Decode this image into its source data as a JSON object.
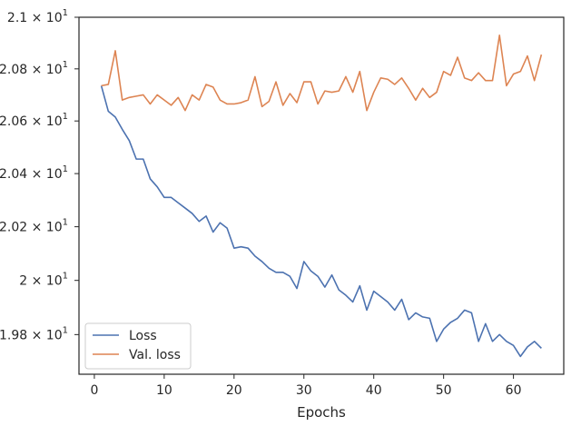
{
  "chart_data": {
    "type": "line",
    "xlabel": "Epochs",
    "ylabel": "",
    "xlim": [
      -2.2,
      67.2
    ],
    "ylim": [
      19.655,
      21.0
    ],
    "log_scale_y": true,
    "xticks": [
      0,
      10,
      20,
      30,
      40,
      50,
      60
    ],
    "yticks": [
      {
        "value": 19.8,
        "mantissa": "1.98",
        "exp": "1"
      },
      {
        "value": 20.0,
        "mantissa": "2",
        "exp": "1"
      },
      {
        "value": 20.2,
        "mantissa": "2.02",
        "exp": "1"
      },
      {
        "value": 20.4,
        "mantissa": "2.04",
        "exp": "1"
      },
      {
        "value": 20.6,
        "mantissa": "2.06",
        "exp": "1"
      },
      {
        "value": 20.8,
        "mantissa": "2.08",
        "exp": "1"
      },
      {
        "value": 21.0,
        "mantissa": "2.1",
        "exp": "1"
      }
    ],
    "grid": false,
    "legend_position": "lower-left",
    "x": [
      1,
      2,
      3,
      4,
      5,
      6,
      7,
      8,
      9,
      10,
      11,
      12,
      13,
      14,
      15,
      16,
      17,
      18,
      19,
      20,
      21,
      22,
      23,
      24,
      25,
      26,
      27,
      28,
      29,
      30,
      31,
      32,
      33,
      34,
      35,
      36,
      37,
      38,
      39,
      40,
      41,
      42,
      43,
      44,
      45,
      46,
      47,
      48,
      49,
      50,
      51,
      52,
      53,
      54,
      55,
      56,
      57,
      58,
      59,
      60,
      61,
      62,
      63,
      64
    ],
    "series": [
      {
        "name": "Loss",
        "color": "#4c72b0",
        "values": [
          20.735,
          20.637,
          20.615,
          20.568,
          20.525,
          20.455,
          20.455,
          20.38,
          20.35,
          20.31,
          20.31,
          20.29,
          20.27,
          20.25,
          20.22,
          20.24,
          20.18,
          20.215,
          20.195,
          20.12,
          20.125,
          20.12,
          20.09,
          20.07,
          20.045,
          20.03,
          20.03,
          20.015,
          19.97,
          20.07,
          20.035,
          20.015,
          19.975,
          20.02,
          19.965,
          19.945,
          19.92,
          19.98,
          19.89,
          19.96,
          19.94,
          19.92,
          19.89,
          19.93,
          19.855,
          19.88,
          19.865,
          19.86,
          19.775,
          19.82,
          19.845,
          19.86,
          19.89,
          19.88,
          19.775,
          19.84,
          19.775,
          19.8,
          19.775,
          19.76,
          19.72,
          19.755,
          19.775,
          19.75
        ]
      },
      {
        "name": "Val. loss",
        "color": "#dd8452",
        "values": [
          20.735,
          20.74,
          20.87,
          20.68,
          20.69,
          20.695,
          20.7,
          20.665,
          20.7,
          20.68,
          20.66,
          20.69,
          20.64,
          20.7,
          20.68,
          20.74,
          20.73,
          20.68,
          20.665,
          20.665,
          20.67,
          20.68,
          20.77,
          20.655,
          20.675,
          20.75,
          20.66,
          20.705,
          20.67,
          20.75,
          20.75,
          20.665,
          20.715,
          20.71,
          20.715,
          20.77,
          20.71,
          20.79,
          20.64,
          20.71,
          20.765,
          20.76,
          20.74,
          20.765,
          20.725,
          20.68,
          20.725,
          20.69,
          20.71,
          20.79,
          20.775,
          20.845,
          20.765,
          20.755,
          20.785,
          20.755,
          20.755,
          20.93,
          20.735,
          20.78,
          20.79,
          20.85,
          20.755,
          20.855
        ]
      }
    ]
  }
}
